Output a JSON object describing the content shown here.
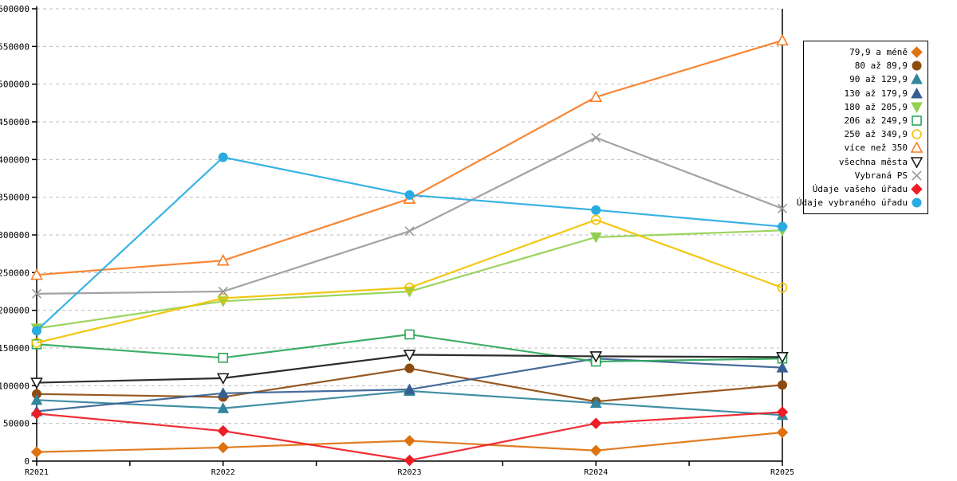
{
  "chart_data": {
    "type": "line",
    "title": "",
    "xlabel": "",
    "ylabel": "",
    "categories": [
      "R2021",
      "R2022",
      "R2023",
      "R2024",
      "R2025"
    ],
    "ylim": [
      0,
      600000
    ],
    "y_tick_step": 50000,
    "grid": "horizontal-dashed",
    "legend_position": "right",
    "series": [
      {
        "name": "79,9 a méně",
        "color": "#DD720F",
        "marker": "diamond",
        "hollow": false,
        "values": [
          12000,
          18000,
          27000,
          14000,
          38000
        ]
      },
      {
        "name": "80 až 89,9",
        "color": "#8E4B10",
        "marker": "circle",
        "hollow": false,
        "values": [
          89000,
          85000,
          123000,
          79000,
          101000
        ]
      },
      {
        "name": "90 až 129,9",
        "color": "#31859C",
        "marker": "triangle-up",
        "hollow": false,
        "values": [
          81000,
          70000,
          93000,
          77000,
          61000
        ]
      },
      {
        "name": "130 až 179,9",
        "color": "#365F91",
        "marker": "triangle-up",
        "hollow": false,
        "values": [
          66000,
          90000,
          95000,
          136000,
          124000
        ]
      },
      {
        "name": "180 až 205,9",
        "color": "#92D050",
        "marker": "triangle-down",
        "hollow": false,
        "values": [
          176000,
          212000,
          225000,
          297000,
          306000
        ]
      },
      {
        "name": "206 až 249,9",
        "color": "#2DA75A",
        "marker": "square",
        "hollow": true,
        "values": [
          155000,
          137000,
          168000,
          132000,
          136000
        ]
      },
      {
        "name": "250 až 349,9",
        "color": "#F2C200",
        "marker": "circle",
        "hollow": true,
        "values": [
          157000,
          216000,
          230000,
          320000,
          230000
        ]
      },
      {
        "name": "více než 350",
        "color": "#F97B22",
        "marker": "triangle-up",
        "hollow": true,
        "values": [
          247000,
          266000,
          348000,
          483000,
          558000
        ]
      },
      {
        "name": "všechna města",
        "color": "#1A1A1A",
        "marker": "triangle-down",
        "hollow": true,
        "values": [
          104000,
          110000,
          141000,
          139000,
          138000
        ]
      },
      {
        "name": "Vybraná PS",
        "color": "#9A9A9A",
        "marker": "x",
        "hollow": true,
        "values": [
          222000,
          225000,
          305000,
          429000,
          335000
        ]
      },
      {
        "name": "Údaje vašeho úřadu",
        "color": "#EE1C25",
        "marker": "diamond",
        "hollow": false,
        "values": [
          63000,
          40000,
          1000,
          50000,
          65000
        ]
      },
      {
        "name": "Údaje vybraného úřadu",
        "color": "#29ABE2",
        "marker": "circle",
        "hollow": false,
        "values": [
          173000,
          403000,
          353000,
          333000,
          311000
        ]
      }
    ]
  }
}
